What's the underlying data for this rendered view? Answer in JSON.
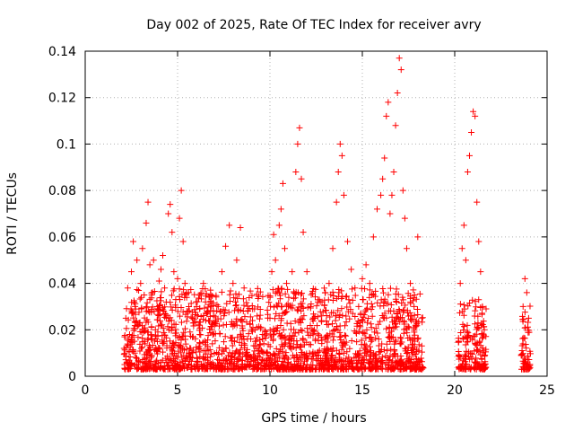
{
  "chart_data": {
    "type": "scatter",
    "title": "Day 002 of 2025, Rate Of TEC Index for receiver avry",
    "xlabel": "GPS time / hours",
    "ylabel": "ROTI / TECUs",
    "xlim": [
      0,
      25
    ],
    "ylim": [
      0,
      0.14
    ],
    "xticks": [
      "0",
      "5",
      "10",
      "15",
      "20",
      "25"
    ],
    "yticks": [
      "0",
      "0.02",
      "0.04",
      "0.06",
      "0.08",
      "0.1",
      "0.12",
      "0.14"
    ],
    "grid": true,
    "marker": "+",
    "color": "#ff0000",
    "series": [
      {
        "points": [
          [
            2.1,
            0.012
          ],
          [
            2.2,
            0.025
          ],
          [
            2.3,
            0.038
          ],
          [
            2.4,
            0.018
          ],
          [
            2.5,
            0.045
          ],
          [
            2.6,
            0.058
          ],
          [
            2.7,
            0.03
          ],
          [
            2.8,
            0.05
          ],
          [
            2.9,
            0.022
          ],
          [
            3.0,
            0.04
          ],
          [
            3.1,
            0.055
          ],
          [
            3.2,
            0.015
          ],
          [
            3.3,
            0.066
          ],
          [
            3.4,
            0.075
          ],
          [
            3.5,
            0.048
          ],
          [
            3.6,
            0.035
          ],
          [
            3.7,
            0.05
          ],
          [
            3.8,
            0.02
          ],
          [
            3.9,
            0.03
          ],
          [
            4.0,
            0.041
          ],
          [
            4.1,
            0.046
          ],
          [
            4.2,
            0.052
          ],
          [
            4.3,
            0.038
          ],
          [
            4.4,
            0.025
          ],
          [
            4.5,
            0.07
          ],
          [
            4.6,
            0.074
          ],
          [
            4.7,
            0.062
          ],
          [
            4.8,
            0.045
          ],
          [
            4.9,
            0.033
          ],
          [
            5.0,
            0.042
          ],
          [
            5.1,
            0.068
          ],
          [
            5.2,
            0.08
          ],
          [
            5.3,
            0.058
          ],
          [
            5.4,
            0.04
          ],
          [
            5.5,
            0.028
          ],
          [
            5.6,
            0.036
          ],
          [
            5.8,
            0.025
          ],
          [
            6.0,
            0.032
          ],
          [
            6.2,
            0.018
          ],
          [
            6.4,
            0.04
          ],
          [
            6.6,
            0.028
          ],
          [
            6.8,
            0.035
          ],
          [
            7.0,
            0.022
          ],
          [
            7.2,
            0.03
          ],
          [
            7.4,
            0.045
          ],
          [
            7.6,
            0.056
          ],
          [
            7.8,
            0.065
          ],
          [
            8.0,
            0.04
          ],
          [
            8.2,
            0.05
          ],
          [
            8.4,
            0.064
          ],
          [
            8.6,
            0.038
          ],
          [
            8.8,
            0.028
          ],
          [
            9.0,
            0.02
          ],
          [
            9.2,
            0.015
          ],
          [
            9.4,
            0.012
          ],
          [
            9.6,
            0.018
          ],
          [
            9.8,
            0.01
          ],
          [
            10.0,
            0.025
          ],
          [
            10.1,
            0.045
          ],
          [
            10.2,
            0.061
          ],
          [
            10.3,
            0.05
          ],
          [
            10.4,
            0.03
          ],
          [
            10.5,
            0.065
          ],
          [
            10.6,
            0.072
          ],
          [
            10.7,
            0.083
          ],
          [
            10.8,
            0.055
          ],
          [
            10.9,
            0.04
          ],
          [
            11.0,
            0.03
          ],
          [
            11.2,
            0.045
          ],
          [
            11.4,
            0.088
          ],
          [
            11.5,
            0.1
          ],
          [
            11.6,
            0.107
          ],
          [
            11.7,
            0.085
          ],
          [
            11.8,
            0.062
          ],
          [
            12.0,
            0.045
          ],
          [
            12.2,
            0.03
          ],
          [
            12.4,
            0.02
          ],
          [
            12.6,
            0.032
          ],
          [
            12.8,
            0.026
          ],
          [
            13.0,
            0.036
          ],
          [
            13.2,
            0.04
          ],
          [
            13.4,
            0.055
          ],
          [
            13.6,
            0.075
          ],
          [
            13.7,
            0.088
          ],
          [
            13.8,
            0.1
          ],
          [
            13.9,
            0.095
          ],
          [
            14.0,
            0.078
          ],
          [
            14.2,
            0.058
          ],
          [
            14.4,
            0.046
          ],
          [
            14.6,
            0.038
          ],
          [
            14.8,
            0.03
          ],
          [
            15.0,
            0.042
          ],
          [
            15.2,
            0.048
          ],
          [
            15.4,
            0.04
          ],
          [
            15.6,
            0.06
          ],
          [
            15.8,
            0.072
          ],
          [
            16.0,
            0.078
          ],
          [
            16.1,
            0.085
          ],
          [
            16.2,
            0.094
          ],
          [
            16.3,
            0.112
          ],
          [
            16.4,
            0.118
          ],
          [
            16.5,
            0.07
          ],
          [
            16.6,
            0.078
          ],
          [
            16.7,
            0.088
          ],
          [
            16.8,
            0.108
          ],
          [
            16.9,
            0.122
          ],
          [
            17.0,
            0.137
          ],
          [
            17.1,
            0.132
          ],
          [
            17.2,
            0.08
          ],
          [
            17.3,
            0.068
          ],
          [
            17.4,
            0.055
          ],
          [
            17.6,
            0.04
          ],
          [
            17.8,
            0.03
          ],
          [
            18.0,
            0.06
          ],
          [
            20.3,
            0.04
          ],
          [
            20.4,
            0.055
          ],
          [
            20.5,
            0.065
          ],
          [
            20.6,
            0.05
          ],
          [
            20.7,
            0.088
          ],
          [
            20.8,
            0.095
          ],
          [
            20.9,
            0.105
          ],
          [
            21.0,
            0.114
          ],
          [
            21.1,
            0.112
          ],
          [
            21.2,
            0.075
          ],
          [
            21.3,
            0.058
          ],
          [
            21.4,
            0.045
          ],
          [
            21.5,
            0.03
          ],
          [
            21.6,
            0.02
          ],
          [
            23.7,
            0.03
          ],
          [
            23.8,
            0.042
          ],
          [
            23.9,
            0.036
          ],
          [
            24.0,
            0.025
          ]
        ]
      }
    ]
  }
}
